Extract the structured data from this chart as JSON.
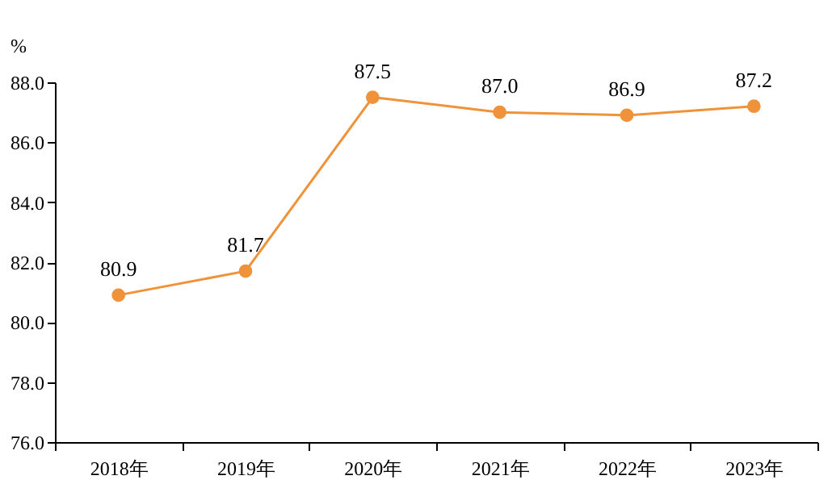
{
  "chart_data": {
    "type": "line",
    "ylabel": "%",
    "categories": [
      "2018年",
      "2019年",
      "2020年",
      "2021年",
      "2022年",
      "2023年"
    ],
    "series": [
      {
        "color": "#f0923a",
        "values": [
          80.9,
          81.7,
          87.5,
          87.0,
          86.9,
          87.2
        ],
        "value_labels": [
          "80.9",
          "81.7",
          "87.5",
          "87.0",
          "86.9",
          "87.2"
        ]
      }
    ],
    "ylim": [
      76,
      88
    ],
    "yticks": [
      {
        "value": 76,
        "label": "76.0"
      },
      {
        "value": 78,
        "label": "78.0"
      },
      {
        "value": 80,
        "label": "80.0"
      },
      {
        "value": 82,
        "label": "82.0"
      },
      {
        "value": 84,
        "label": "84.0"
      },
      {
        "value": 86,
        "label": "86.0"
      },
      {
        "value": 88,
        "label": "88.0"
      }
    ],
    "grid": false,
    "legend": false,
    "marker": "circle",
    "line_style": "solid"
  }
}
